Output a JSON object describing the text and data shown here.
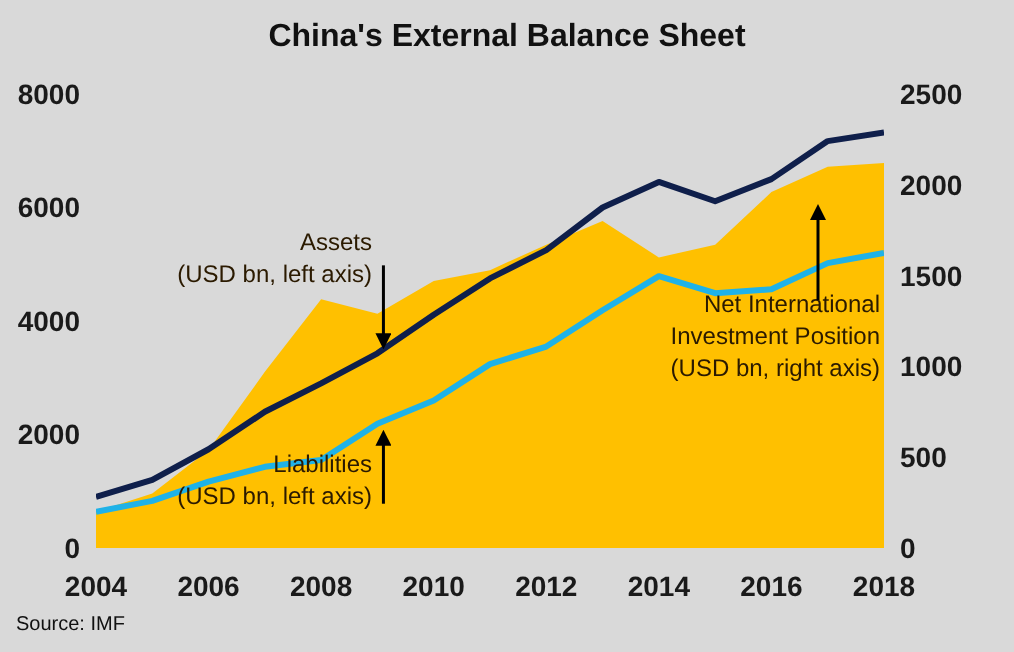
{
  "chart_data": {
    "type": "line",
    "title": "China's External Balance Sheet",
    "x": [
      2004,
      2005,
      2006,
      2007,
      2008,
      2009,
      2010,
      2011,
      2012,
      2013,
      2014,
      2015,
      2016,
      2017,
      2018
    ],
    "xlim": [
      2004,
      2018
    ],
    "xticks": [
      2004,
      2006,
      2008,
      2010,
      2012,
      2014,
      2016,
      2018
    ],
    "ylim": [
      0,
      8000
    ],
    "yticks": [
      0,
      2000,
      4000,
      6000,
      8000
    ],
    "y2lim": [
      0,
      2500
    ],
    "y2ticks": [
      0,
      500,
      1000,
      1500,
      2000,
      2500
    ],
    "series": [
      {
        "type": "area",
        "axis": "y2",
        "color": "#ffc000",
        "values": [
          200,
          300,
          540,
          970,
          1370,
          1290,
          1470,
          1530,
          1670,
          1800,
          1600,
          1670,
          1960,
          2100,
          2120
        ]
      },
      {
        "color": "#0f1f4b",
        "values": [
          900,
          1200,
          1740,
          2400,
          2900,
          3430,
          4110,
          4750,
          5250,
          6000,
          6450,
          6110,
          6500,
          7170,
          7320
        ]
      },
      {
        "color": "#1fb2e8",
        "values": [
          640,
          830,
          1170,
          1430,
          1550,
          2190,
          2600,
          3240,
          3550,
          4190,
          4790,
          4490,
          4560,
          5020,
          5200
        ]
      }
    ],
    "annotations": [
      {
        "text": "Assets\n(USD bn, left axis)",
        "x": 2009,
        "y": 3430
      },
      {
        "text": "Liabilities\n(USD bn, left axis)",
        "x": 2009,
        "y": 2190
      },
      "Net International\nInvestment Position\n(USD bn, right axis)",
      "Source: IMF"
    ]
  }
}
